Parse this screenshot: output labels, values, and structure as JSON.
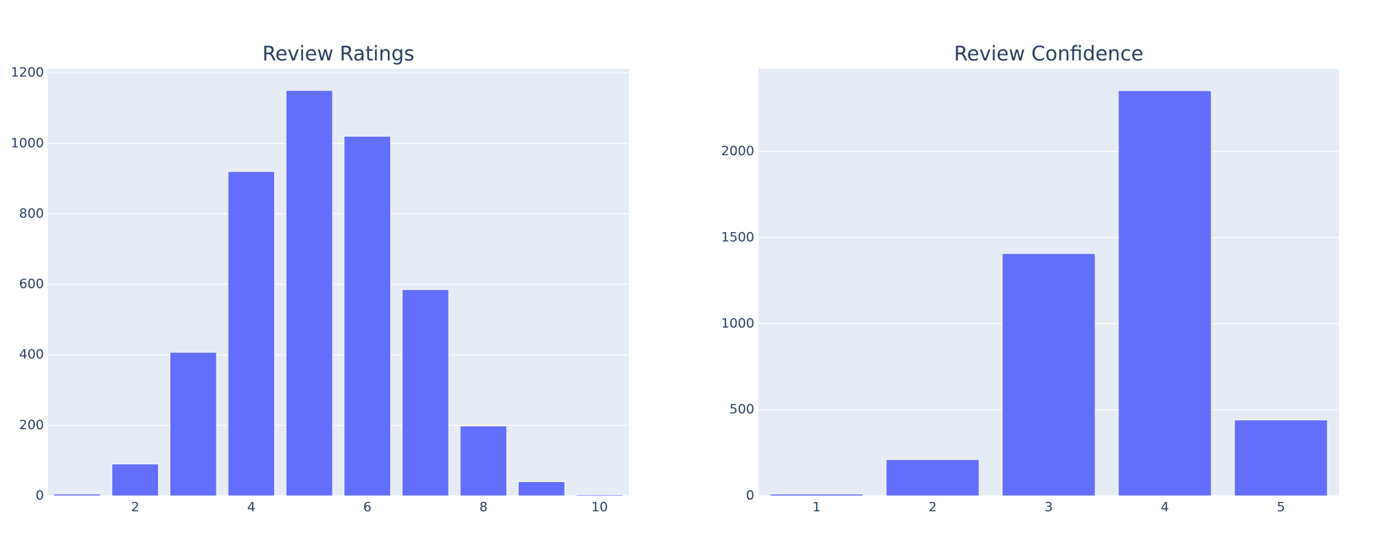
{
  "chart_data": [
    {
      "type": "bar",
      "title": "Review Ratings",
      "color": "#636efa",
      "grid": true,
      "x": [
        1,
        2,
        3,
        4,
        5,
        6,
        7,
        8,
        9,
        10
      ],
      "values": [
        5,
        90,
        407,
        920,
        1150,
        1020,
        585,
        198,
        40,
        3
      ],
      "xlim": [
        0.5,
        10.5
      ],
      "xticks": [
        2,
        4,
        6,
        8,
        10
      ],
      "ylim": [
        0,
        1212
      ],
      "yticks": [
        0,
        200,
        400,
        600,
        800,
        1000,
        1200
      ]
    },
    {
      "type": "bar",
      "title": "Review Confidence",
      "color": "#636efa",
      "grid": true,
      "x": [
        1,
        2,
        3,
        4,
        5
      ],
      "values": [
        10,
        210,
        1407,
        2353,
        440
      ],
      "xlim": [
        0.5,
        5.5
      ],
      "xticks": [
        1,
        2,
        3,
        4,
        5
      ],
      "ylim": [
        0,
        2481
      ],
      "yticks": [
        0,
        500,
        1000,
        1500,
        2000
      ]
    }
  ]
}
